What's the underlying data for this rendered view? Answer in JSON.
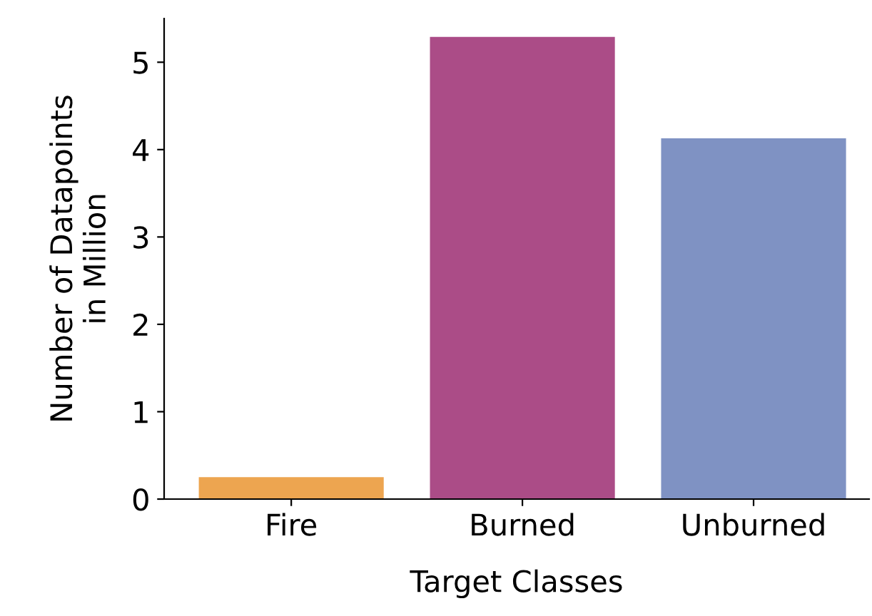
{
  "chart_data": {
    "type": "bar",
    "xlabel": "Target Classes",
    "ylabel": "Number of Datapoints\nin Million",
    "categories": [
      "Fire",
      "Burned",
      "Unburned"
    ],
    "values": [
      0.25,
      5.29,
      4.13
    ],
    "colors": [
      "#eda550",
      "#ab4c87",
      "#7f92c3"
    ],
    "ylim": [
      0,
      5.5
    ],
    "yticks": [
      0,
      1,
      2,
      3,
      4,
      5
    ],
    "grid": false,
    "legend": false
  }
}
